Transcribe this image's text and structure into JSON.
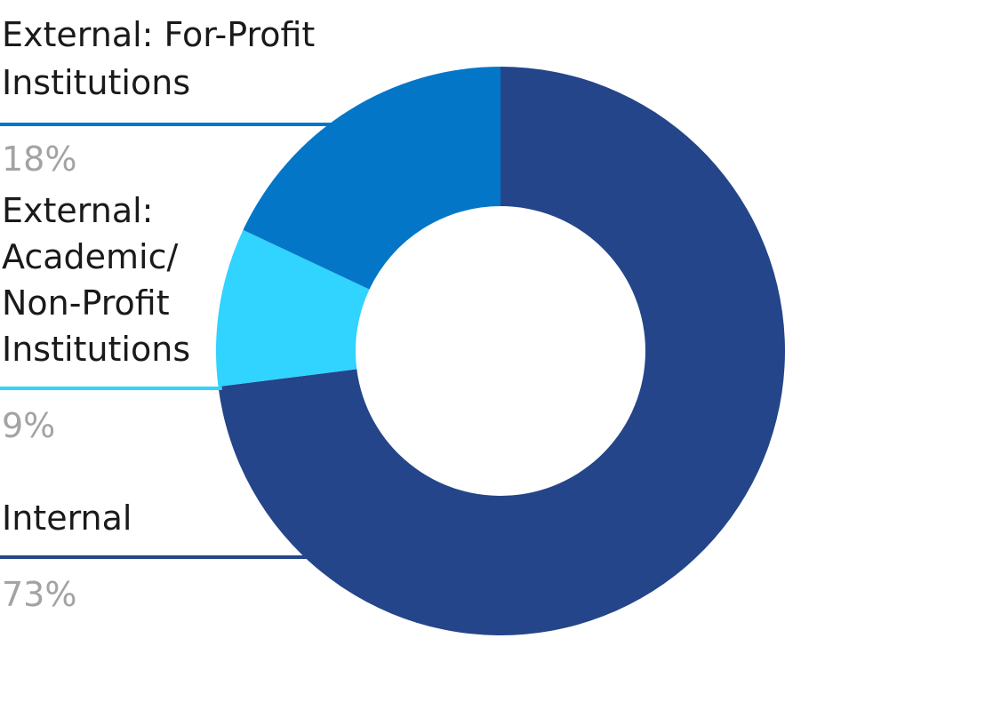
{
  "chart_data": {
    "type": "pie",
    "variant": "donut",
    "start_angle_deg": 0,
    "direction": "clockwise",
    "slices": [
      {
        "key": "internal",
        "label_lines": [
          "Internal"
        ],
        "value": 73,
        "value_label": "73%",
        "color": "#244589"
      },
      {
        "key": "academic",
        "label_lines": [
          "External:",
          "Academic/",
          "Non-Profit",
          "Institutions"
        ],
        "value": 9,
        "value_label": "9%",
        "color": "#31d3ff"
      },
      {
        "key": "forprofit",
        "label_lines": [
          "External: For-Profit",
          "Institutions"
        ],
        "value": 18,
        "value_label": "18%",
        "color": "#0476c8"
      }
    ]
  }
}
